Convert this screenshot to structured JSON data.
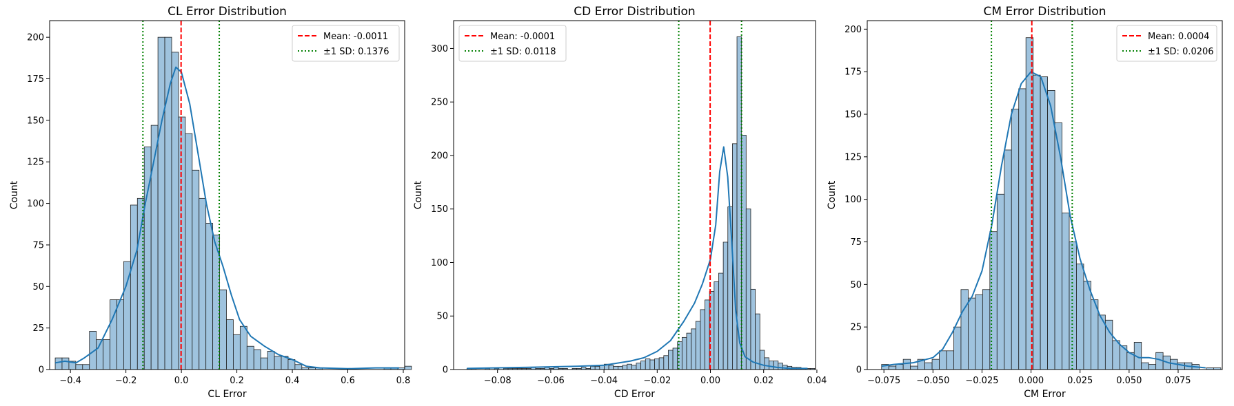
{
  "chart_data": [
    {
      "type": "histogram",
      "title": "CL Error Distribution",
      "xlabel": "CL Error",
      "ylabel": "Count",
      "xlim": [
        -0.475,
        0.805
      ],
      "ylim": [
        0,
        210
      ],
      "xticks": [
        -0.4,
        -0.2,
        0.0,
        0.2,
        0.4,
        0.6,
        0.8
      ],
      "xtick_labels": [
        "−0.4",
        "−0.2",
        "0.0",
        "0.2",
        "0.4",
        "0.6",
        "0.8"
      ],
      "yticks": [
        0,
        25,
        50,
        75,
        100,
        125,
        150,
        175,
        200
      ],
      "bin_start": -0.455,
      "bin_width": 0.0247,
      "counts": [
        7,
        7,
        5,
        3,
        3,
        23,
        18,
        18,
        42,
        42,
        65,
        99,
        103,
        134,
        147,
        200,
        200,
        191,
        152,
        142,
        120,
        103,
        88,
        81,
        48,
        30,
        21,
        26,
        14,
        12,
        7,
        11,
        8,
        8,
        6,
        3,
        1,
        1,
        1,
        0,
        0,
        0,
        0,
        0,
        0,
        0,
        0,
        0,
        1,
        1,
        1,
        2
      ],
      "kde": [
        [
          -0.455,
          4
        ],
        [
          -0.42,
          5
        ],
        [
          -0.38,
          4
        ],
        [
          -0.35,
          7
        ],
        [
          -0.3,
          13
        ],
        [
          -0.25,
          30
        ],
        [
          -0.2,
          50
        ],
        [
          -0.16,
          72
        ],
        [
          -0.13,
          100
        ],
        [
          -0.1,
          125
        ],
        [
          -0.07,
          150
        ],
        [
          -0.04,
          172
        ],
        [
          -0.02,
          182
        ],
        [
          0.0,
          179
        ],
        [
          0.03,
          160
        ],
        [
          0.06,
          130
        ],
        [
          0.09,
          100
        ],
        [
          0.12,
          77
        ],
        [
          0.15,
          62
        ],
        [
          0.18,
          45
        ],
        [
          0.21,
          30
        ],
        [
          0.25,
          20
        ],
        [
          0.3,
          14
        ],
        [
          0.35,
          9
        ],
        [
          0.4,
          6
        ],
        [
          0.45,
          2
        ],
        [
          0.5,
          1
        ],
        [
          0.6,
          0.5
        ],
        [
          0.7,
          1
        ],
        [
          0.785,
          1
        ]
      ],
      "mean": -0.0011,
      "sd": 0.1376,
      "legend": [
        "Mean: -0.0011",
        "±1 SD: 0.1376"
      ],
      "legend_position": "upper right"
    },
    {
      "type": "histogram",
      "title": "CD Error Distribution",
      "xlabel": "CD Error",
      "ylabel": "Count",
      "xlim": [
        -0.0965,
        0.0395
      ],
      "ylim": [
        0,
        326
      ],
      "xticks": [
        -0.08,
        -0.06,
        -0.04,
        -0.02,
        0.0,
        0.02,
        0.04
      ],
      "xtick_labels": [
        "−0.08",
        "−0.06",
        "−0.04",
        "−0.02",
        "0.00",
        "0.02",
        "0.04"
      ],
      "yticks": [
        0,
        50,
        100,
        150,
        200,
        250,
        300
      ],
      "bin_start": -0.0915,
      "bin_width": 0.00172,
      "counts": [
        1,
        1,
        0,
        0,
        1,
        0,
        1,
        0,
        1,
        1,
        1,
        1,
        1,
        1,
        2,
        1,
        1,
        2,
        1,
        2,
        1,
        1,
        0,
        1,
        1,
        2,
        1,
        3,
        3,
        4,
        5,
        4,
        3,
        3,
        4,
        5,
        4,
        6,
        8,
        10,
        9,
        10,
        11,
        13,
        18,
        20,
        26,
        30,
        34,
        38,
        45,
        56,
        65,
        73,
        82,
        90,
        119,
        152,
        211,
        311,
        219,
        150,
        75,
        52,
        18,
        11,
        8,
        8,
        6,
        4,
        3,
        2,
        2,
        1,
        1,
        1,
        0
      ],
      "kde": [
        [
          -0.0915,
          1
        ],
        [
          -0.07,
          2
        ],
        [
          -0.05,
          3
        ],
        [
          -0.04,
          4
        ],
        [
          -0.03,
          8
        ],
        [
          -0.025,
          11
        ],
        [
          -0.02,
          17
        ],
        [
          -0.015,
          27
        ],
        [
          -0.01,
          45
        ],
        [
          -0.006,
          62
        ],
        [
          -0.003,
          80
        ],
        [
          0.0,
          103
        ],
        [
          0.002,
          135
        ],
        [
          0.0035,
          185
        ],
        [
          0.005,
          208
        ],
        [
          0.0065,
          180
        ],
        [
          0.008,
          120
        ],
        [
          0.0095,
          55
        ],
        [
          0.011,
          25
        ],
        [
          0.013,
          12
        ],
        [
          0.016,
          7
        ],
        [
          0.02,
          4
        ],
        [
          0.025,
          2
        ],
        [
          0.03,
          1
        ],
        [
          0.0365,
          1
        ]
      ],
      "mean": -0.0001,
      "sd": 0.0118,
      "legend": [
        "Mean: -0.0001",
        "±1 SD: 0.0118"
      ],
      "legend_position": "upper left"
    },
    {
      "type": "histogram",
      "title": "CM Error Distribution",
      "xlabel": "CM Error",
      "ylabel": "Count",
      "xlim": [
        -0.0835,
        0.0975
      ],
      "ylim": [
        0,
        205
      ],
      "xticks": [
        -0.075,
        -0.05,
        -0.025,
        0.0,
        0.025,
        0.05,
        0.075
      ],
      "xtick_labels": [
        "−0.075",
        "−0.050",
        "−0.025",
        "0.000",
        "0.025",
        "0.050",
        "0.075"
      ],
      "yticks": [
        0,
        25,
        50,
        75,
        100,
        125,
        150,
        175,
        200
      ],
      "bin_start": -0.0762,
      "bin_width": 0.00368,
      "counts": [
        3,
        2,
        3,
        6,
        2,
        6,
        4,
        6,
        11,
        11,
        25,
        47,
        42,
        44,
        47,
        81,
        103,
        129,
        153,
        165,
        195,
        173,
        172,
        164,
        145,
        92,
        75,
        62,
        52,
        41,
        32,
        29,
        17,
        14,
        10,
        16,
        4,
        3,
        10,
        8,
        6,
        4,
        4,
        3,
        0,
        1,
        1
      ],
      "kde": [
        [
          -0.0762,
          2
        ],
        [
          -0.07,
          3
        ],
        [
          -0.06,
          4
        ],
        [
          -0.05,
          7
        ],
        [
          -0.045,
          12
        ],
        [
          -0.04,
          22
        ],
        [
          -0.035,
          34
        ],
        [
          -0.03,
          43
        ],
        [
          -0.025,
          58
        ],
        [
          -0.02,
          85
        ],
        [
          -0.015,
          120
        ],
        [
          -0.01,
          150
        ],
        [
          -0.005,
          168
        ],
        [
          0.0,
          175
        ],
        [
          0.005,
          172
        ],
        [
          0.01,
          155
        ],
        [
          0.015,
          125
        ],
        [
          0.02,
          90
        ],
        [
          0.025,
          65
        ],
        [
          0.03,
          47
        ],
        [
          0.035,
          32
        ],
        [
          0.04,
          22
        ],
        [
          0.045,
          15
        ],
        [
          0.05,
          10
        ],
        [
          0.055,
          7
        ],
        [
          0.06,
          7
        ],
        [
          0.065,
          6
        ],
        [
          0.07,
          4
        ],
        [
          0.075,
          3
        ],
        [
          0.08,
          2
        ],
        [
          0.089,
          1
        ]
      ],
      "mean": 0.0004,
      "sd": 0.0206,
      "legend": [
        "Mean: 0.0004",
        "±1 SD: 0.0206"
      ],
      "legend_position": "upper right"
    }
  ],
  "colors": {
    "bar_fill": "#9fc3de",
    "bar_edge": "#1f1f1f",
    "kde": "#1f77b4",
    "mean_line": "#ff0000",
    "sd_line": "#008000"
  }
}
